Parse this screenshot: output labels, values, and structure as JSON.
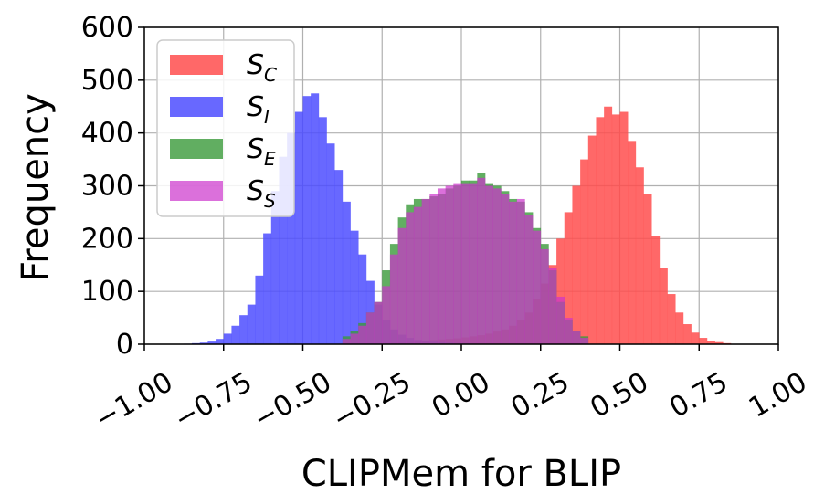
{
  "chart_data": {
    "type": "histogram",
    "xlabel": "CLIPMem for BLIP",
    "ylabel": "Frequency",
    "xlim": [
      -1.0,
      1.0
    ],
    "ylim": [
      0,
      600
    ],
    "xticks": [
      "−1.00",
      "−0.75",
      "−0.50",
      "−0.25",
      "0.00",
      "0.25",
      "0.50",
      "0.75",
      "1.00"
    ],
    "xtick_values": [
      -1.0,
      -0.75,
      -0.5,
      -0.25,
      0.0,
      0.25,
      0.5,
      0.75,
      1.0
    ],
    "yticks": [
      "0",
      "100",
      "200",
      "300",
      "400",
      "500",
      "600"
    ],
    "ytick_values": [
      0,
      100,
      200,
      300,
      400,
      500,
      600
    ],
    "grid": true,
    "legend_position": "upper-left",
    "bin_width": 0.025,
    "series": [
      {
        "label_main": "S",
        "label_sub": "C",
        "color": "#ff4d4d",
        "opacity": 0.85,
        "bin_start": -0.25,
        "counts": [
          2,
          3,
          4,
          5,
          6,
          7,
          8,
          9,
          10,
          11,
          13,
          15,
          17,
          20,
          24,
          28,
          35,
          45,
          60,
          85,
          115,
          150,
          200,
          250,
          300,
          350,
          395,
          430,
          450,
          435,
          440,
          385,
          335,
          285,
          205,
          145,
          95,
          60,
          38,
          22,
          12,
          6,
          4,
          2
        ]
      },
      {
        "label_main": "S",
        "label_sub": "I",
        "color": "#4d4dff",
        "opacity": 0.85,
        "bin_start": -0.875,
        "counts": [
          1,
          2,
          3,
          5,
          10,
          20,
          35,
          55,
          75,
          130,
          210,
          290,
          355,
          400,
          440,
          470,
          475,
          430,
          380,
          330,
          270,
          215,
          170,
          120,
          75,
          45,
          28,
          18,
          12,
          8,
          6,
          5,
          4,
          3,
          2,
          2,
          1
        ]
      },
      {
        "label_main": "S",
        "label_sub": "E",
        "color": "#3a9a3a",
        "opacity": 0.8,
        "bin_start": -0.375,
        "counts": [
          15,
          25,
          40,
          60,
          80,
          140,
          190,
          240,
          265,
          275,
          275,
          280,
          285,
          295,
          300,
          310,
          310,
          325,
          305,
          300,
          290,
          275,
          270,
          250,
          220,
          190,
          140,
          80,
          45,
          25,
          15
        ]
      },
      {
        "label_main": "S",
        "label_sub": "S",
        "color": "#cc33cc",
        "opacity": 0.7,
        "bin_start": -0.375,
        "counts": [
          10,
          20,
          35,
          60,
          80,
          110,
          170,
          220,
          250,
          260,
          275,
          285,
          295,
          300,
          305,
          305,
          305,
          315,
          300,
          295,
          285,
          270,
          275,
          245,
          215,
          180,
          145,
          90,
          50,
          25,
          12
        ]
      }
    ]
  }
}
